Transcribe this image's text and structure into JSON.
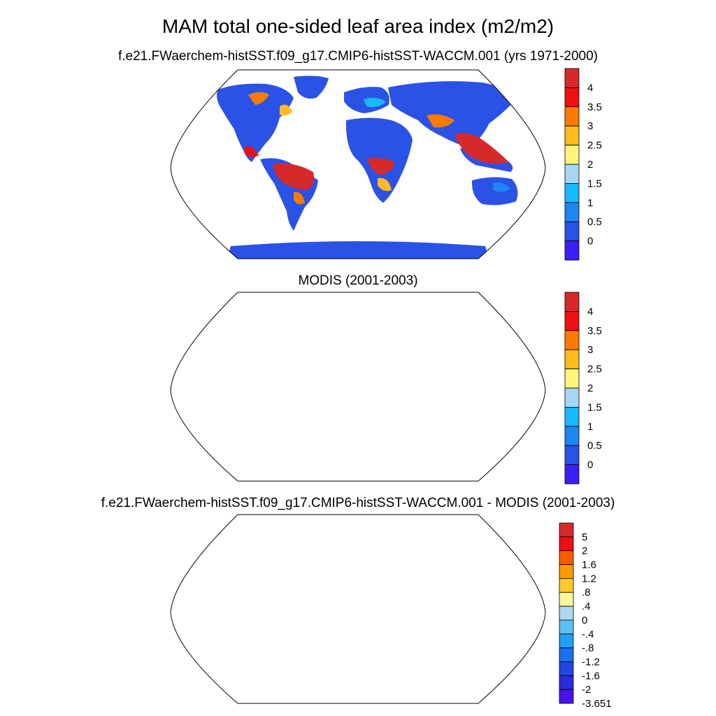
{
  "title": "MAM total one-sided leaf area index (m2/m2)",
  "panels": [
    {
      "title": "f.e21.FWaerchem-histSST.f09_g17.CMIP6-histSST-WACCM.001 (yrs 1971-2000)",
      "colorbar": {
        "labels": [
          "4",
          "3.5",
          "3",
          "2.5",
          "2",
          "1.5",
          "1",
          "0.5",
          "0"
        ],
        "colors": [
          "#d62a2a",
          "#ee1010",
          "#ff7a00",
          "#ffbb1c",
          "#fff37a",
          "#a6d6f5",
          "#18b8ff",
          "#1d86f2",
          "#2b52e6",
          "#3a1ff5"
        ]
      }
    },
    {
      "title": "MODIS (2001-2003)",
      "colorbar": {
        "labels": [
          "4",
          "3.5",
          "3",
          "2.5",
          "2",
          "1.5",
          "1",
          "0.5",
          "0"
        ],
        "colors": [
          "#d62a2a",
          "#ee1010",
          "#ff7a00",
          "#ffbb1c",
          "#fff37a",
          "#a6d6f5",
          "#18b8ff",
          "#1d86f2",
          "#2b52e6",
          "#3a1ff5"
        ]
      }
    },
    {
      "title": "f.e21.FWaerchem-histSST.f09_g17.CMIP6-histSST-WACCM.001 - MODIS (2001-2003)",
      "colorbar": {
        "labels": [
          "5",
          "2",
          "1.6",
          "1.2",
          ".8",
          ".4",
          "0",
          "-.4",
          "-.8",
          "-1.2",
          "-1.6",
          "-2",
          "-3.651"
        ],
        "colors": [
          "#d62a2a",
          "#ee1010",
          "#ff5a00",
          "#ff9a00",
          "#ffcb2a",
          "#fff59a",
          "#aed8f0",
          "#5cc0f5",
          "#1fa0f5",
          "#1d70f0",
          "#2446e6",
          "#2a2ae0",
          "#4a10f0"
        ]
      }
    }
  ]
}
